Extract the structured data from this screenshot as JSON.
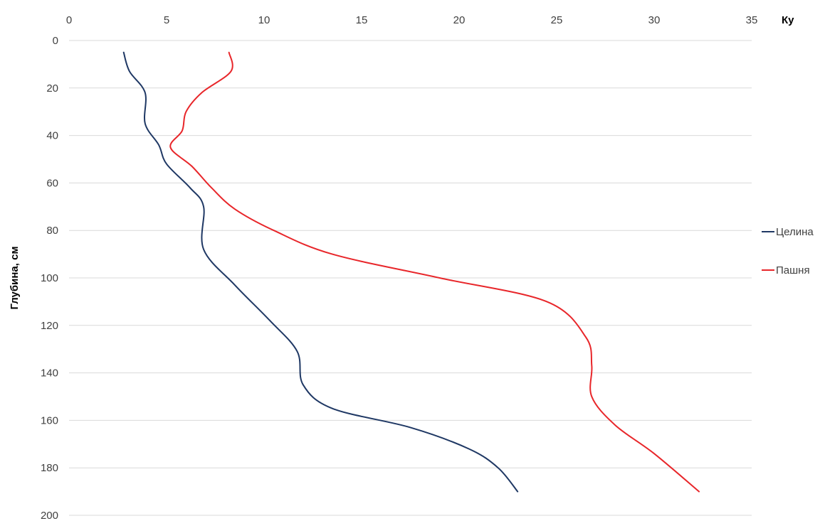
{
  "chart_data": {
    "type": "line",
    "orientation": "x-top-y-inverted",
    "title": "",
    "xlabel": "Ку",
    "ylabel": "Глубина, см",
    "xlim": [
      0,
      35
    ],
    "ylim": [
      0,
      200
    ],
    "y_inverted": true,
    "x_axis_position": "top",
    "x_ticks": [
      "0",
      "5",
      "10",
      "15",
      "20",
      "25",
      "30",
      "35"
    ],
    "y_ticks": [
      "0",
      "20",
      "40",
      "60",
      "80",
      "100",
      "120",
      "140",
      "160",
      "180",
      "200"
    ],
    "grid": "horizontal",
    "legend_position": "right",
    "series": [
      {
        "name": "Целина",
        "color": "#1f3864",
        "points": [
          [
            2.8,
            5
          ],
          [
            3.1,
            13
          ],
          [
            3.9,
            22
          ],
          [
            3.9,
            35
          ],
          [
            4.6,
            44
          ],
          [
            5.0,
            52
          ],
          [
            6.2,
            62
          ],
          [
            6.9,
            70
          ],
          [
            6.9,
            88
          ],
          [
            8.5,
            103
          ],
          [
            10.3,
            118
          ],
          [
            11.7,
            131
          ],
          [
            12.0,
            145
          ],
          [
            13.5,
            155
          ],
          [
            17.5,
            163
          ],
          [
            20.5,
            172
          ],
          [
            22.0,
            180
          ],
          [
            23.0,
            190
          ]
        ]
      },
      {
        "name": "Пашня",
        "color": "#e8262a",
        "points": [
          [
            8.2,
            5
          ],
          [
            8.3,
            13
          ],
          [
            6.8,
            22
          ],
          [
            6.0,
            30
          ],
          [
            5.8,
            38
          ],
          [
            5.2,
            45
          ],
          [
            6.3,
            53
          ],
          [
            7.3,
            62
          ],
          [
            8.5,
            71
          ],
          [
            10.5,
            80
          ],
          [
            13.5,
            90
          ],
          [
            19.0,
            100
          ],
          [
            24.5,
            110
          ],
          [
            26.5,
            125
          ],
          [
            26.8,
            137
          ],
          [
            26.8,
            150
          ],
          [
            28.0,
            162
          ],
          [
            30.0,
            174
          ],
          [
            32.3,
            190
          ]
        ]
      }
    ]
  }
}
